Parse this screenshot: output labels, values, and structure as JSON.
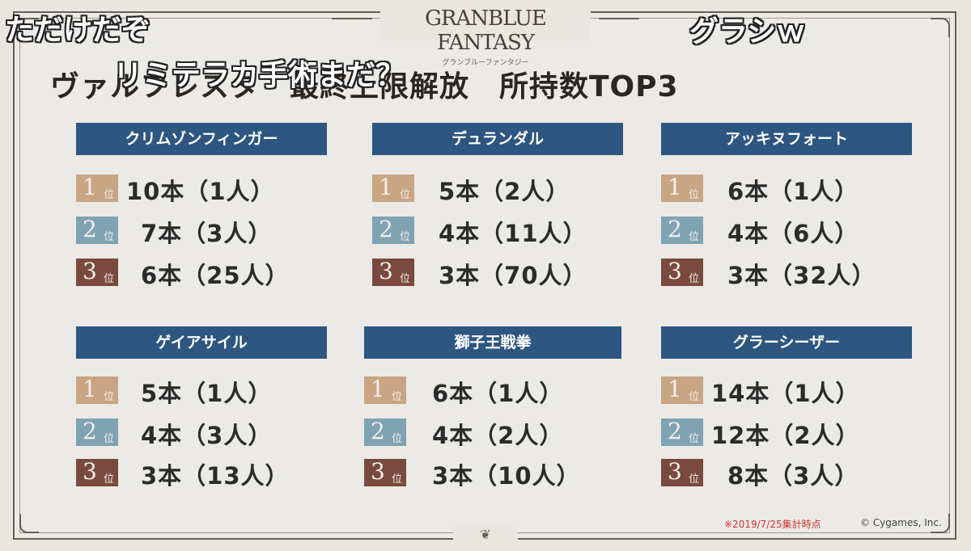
{
  "logo": {
    "main": "GRANBLUE FANTASY",
    "sub": "グランブルーファンタジー"
  },
  "headline": "ヴァルフレスタ　最終上限解放　所持数TOP3",
  "rank_unit": "位",
  "sections": [
    {
      "title": "クリムゾンフィンガー",
      "ranks": [
        "10本（1人）",
        "7本（3人）",
        "6本（25人）"
      ]
    },
    {
      "title": "デュランダル",
      "ranks": [
        "5本（2人）",
        "4本（11人）",
        "3本（70人）"
      ]
    },
    {
      "title": "アッキヌフォート",
      "ranks": [
        "6本（1人）",
        "4本（6人）",
        "3本（32人）"
      ]
    },
    {
      "title": "ゲイアサイル",
      "ranks": [
        "5本（1人）",
        "4本（3人）",
        "3本（13人）"
      ]
    },
    {
      "title": "獅子王戦拳",
      "ranks": [
        "6本（1人）",
        "4本（2人）",
        "3本（10人）"
      ]
    },
    {
      "title": "グラーシーザー",
      "ranks": [
        "14本（1人）",
        "12本（2人）",
        "8本（3人）"
      ]
    }
  ],
  "footer": {
    "note": "※2019/7/25集計時点",
    "copyright": "© Cygames, Inc."
  },
  "comments": [
    "ただけだぞ",
    "グラシｗ",
    "リミテラカ手術まだ？"
  ],
  "colors": {
    "header_bg": "#2d5680",
    "rank1": "#c8a583",
    "rank2": "#7fa3b3",
    "rank3": "#7a4a3e",
    "note_red": "#cc3333"
  }
}
